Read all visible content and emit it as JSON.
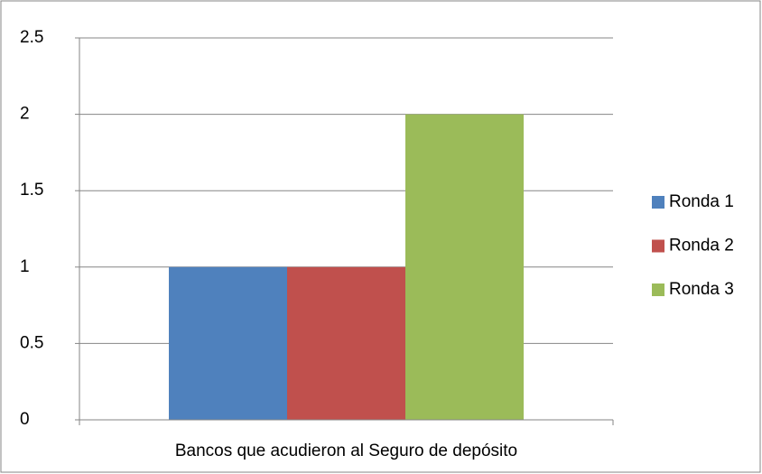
{
  "chart_data": {
    "type": "bar",
    "categories": [
      "Bancos que acudieron al Seguro de depósito"
    ],
    "series": [
      {
        "name": "Ronda 1",
        "color": "#4f81bd",
        "values": [
          1
        ]
      },
      {
        "name": "Ronda 2",
        "color": "#c0504d",
        "values": [
          1
        ]
      },
      {
        "name": "Ronda 3",
        "color": "#9bbb59",
        "values": [
          2
        ]
      }
    ],
    "ylim": [
      0,
      2.5
    ],
    "yticks": [
      0,
      0.5,
      1,
      1.5,
      2,
      2.5
    ],
    "grid": true,
    "legend": "right"
  }
}
